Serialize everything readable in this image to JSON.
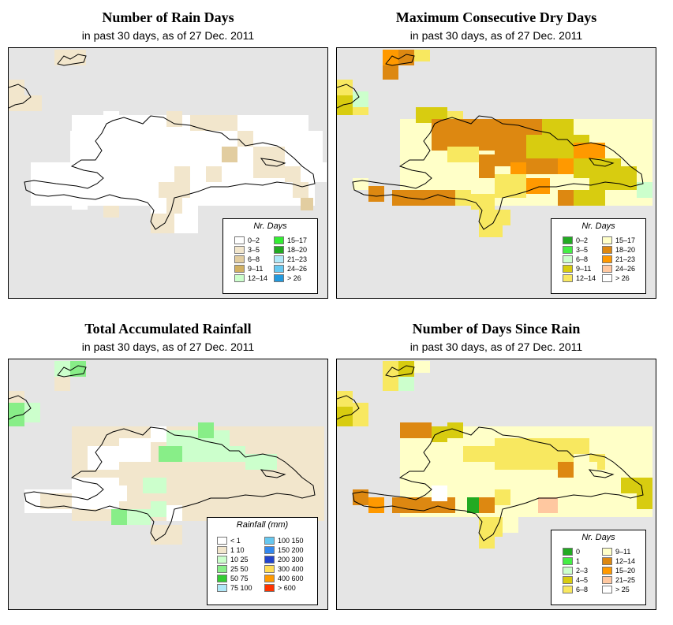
{
  "panels": [
    {
      "title": "Number of Rain Days",
      "subtitle": "in past 30 days, as of  27 Dec. 2011",
      "legend_title": "Nr. Days",
      "legend": [
        {
          "label": "0–2",
          "color": "#ffffff"
        },
        {
          "label": "3–5",
          "color": "#f2e6cc"
        },
        {
          "label": "6–8",
          "color": "#e2cda0"
        },
        {
          "label": "9–11",
          "color": "#d1b062"
        },
        {
          "label": "12–14",
          "color": "#ccffcc"
        },
        {
          "label": "15–17",
          "color": "#33ee33"
        },
        {
          "label": "18–20",
          "color": "#22aa22"
        },
        {
          "label": "21–23",
          "color": "#b0e8f8"
        },
        {
          "label": "24–26",
          "color": "#66c8f0"
        },
        {
          "label": "> 26",
          "color": "#2299dd"
        }
      ]
    },
    {
      "title": "Maximum Consecutive Dry Days",
      "subtitle": "in past 30 days, as of  27 Dec. 2011",
      "legend_title": "Nr. Days",
      "legend": [
        {
          "label": "0–2",
          "color": "#22aa22"
        },
        {
          "label": "3–5",
          "color": "#44ee44"
        },
        {
          "label": "6–8",
          "color": "#ccffcc"
        },
        {
          "label": "9–11",
          "color": "#d8cc10"
        },
        {
          "label": "12–14",
          "color": "#f8e860"
        },
        {
          "label": "15–17",
          "color": "#ffffc8"
        },
        {
          "label": "18–20",
          "color": "#dd8811"
        },
        {
          "label": "21–23",
          "color": "#ff9900"
        },
        {
          "label": "24–26",
          "color": "#ffc8a0"
        },
        {
          "label": "> 26",
          "color": "#ffffff"
        }
      ]
    },
    {
      "title": "Total Accumulated Rainfall",
      "subtitle": "in past 30 days, as of  27 Dec. 2011",
      "legend_title": "Rainfall (mm)",
      "legend": [
        {
          "label": "< 1",
          "color": "#ffffff"
        },
        {
          "label": "1    10",
          "color": "#f2e6cc"
        },
        {
          "label": "10   25",
          "color": "#ccffcc"
        },
        {
          "label": "25   50",
          "color": "#88ee88"
        },
        {
          "label": "50   75",
          "color": "#33cc33"
        },
        {
          "label": "75  100",
          "color": "#b0e8f8"
        },
        {
          "label": "100  150",
          "color": "#66c8f0"
        },
        {
          "label": "150  200",
          "color": "#3388ee"
        },
        {
          "label": "200  300",
          "color": "#2244cc"
        },
        {
          "label": "300  400",
          "color": "#ffdd55"
        },
        {
          "label": "400  600",
          "color": "#ff9900"
        },
        {
          "label": "> 600",
          "color": "#ff3300"
        }
      ]
    },
    {
      "title": "Number of Days Since Rain",
      "subtitle": "in past 30 days, as of  27 Dec. 2011",
      "legend_title": "Nr. Days",
      "legend": [
        {
          "label": "0",
          "color": "#22aa22"
        },
        {
          "label": "1",
          "color": "#44ee44"
        },
        {
          "label": "2–3",
          "color": "#ccffcc"
        },
        {
          "label": "4–5",
          "color": "#d8cc10"
        },
        {
          "label": "6–8",
          "color": "#f8e860"
        },
        {
          "label": "9–11",
          "color": "#ffffc8"
        },
        {
          "label": "12–14",
          "color": "#dd8811"
        },
        {
          "label": "15–20",
          "color": "#ff9900"
        },
        {
          "label": "21–25",
          "color": "#ffc8a0"
        },
        {
          "label": "> 25",
          "color": "#ffffff"
        }
      ]
    }
  ]
}
